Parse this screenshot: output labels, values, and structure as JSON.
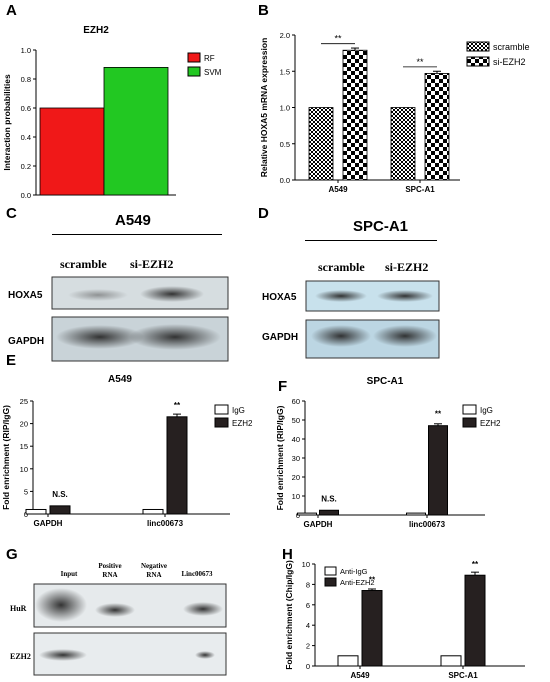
{
  "colors": {
    "rf": "#f01818",
    "svm": "#22c822",
    "dark_bar": "#262020",
    "membrane": "#d9e3e8"
  },
  "panel_letters": [
    "A",
    "B",
    "C",
    "D",
    "E",
    "F",
    "G",
    "H"
  ],
  "chart_data": [
    {
      "id": "A",
      "type": "bar",
      "title": "EZH2",
      "ylabel": "Interaction probabilities",
      "xlabel": "",
      "ylim": [
        0,
        1.0
      ],
      "yticks": [
        "0.0",
        "0.2",
        "0.4",
        "0.6",
        "0.8",
        "1.0"
      ],
      "legend": [
        "RF",
        "SVM"
      ],
      "legend_position": "right",
      "series": [
        {
          "name": "RF",
          "values": [
            0.6
          ]
        },
        {
          "name": "SVM",
          "values": [
            0.88
          ]
        }
      ]
    },
    {
      "id": "B",
      "type": "bar",
      "title": "",
      "ylabel": "Relative HOXA5 mRNA expression",
      "xlabel": "",
      "categories": [
        "A549",
        "SPC-A1"
      ],
      "ylim": [
        0,
        2.0
      ],
      "yticks": [
        "0.0",
        "0.5",
        "1.0",
        "1.5",
        "2.0"
      ],
      "legend": [
        "scramble",
        "si-EZH2"
      ],
      "legend_position": "right",
      "series": [
        {
          "name": "scramble",
          "values": [
            1.0,
            1.0
          ]
        },
        {
          "name": "si-EZH2",
          "values": [
            1.79,
            1.47
          ]
        }
      ],
      "annotations": [
        "**",
        "**"
      ]
    },
    {
      "id": "E",
      "type": "bar",
      "title": "A549",
      "ylabel": "Fold enrichment (RIP/IgG)",
      "xlabel": "",
      "categories": [
        "GAPDH",
        "linc00673"
      ],
      "ylim": [
        0,
        25
      ],
      "yticks": [
        "0",
        "5",
        "10",
        "15",
        "20",
        "25"
      ],
      "legend": [
        "IgG",
        "EZH2"
      ],
      "legend_position": "top-right",
      "series": [
        {
          "name": "IgG",
          "values": [
            1.0,
            1.0
          ]
        },
        {
          "name": "EZH2",
          "values": [
            1.8,
            21.5
          ]
        }
      ],
      "annotations": [
        "N.S.",
        "**"
      ]
    },
    {
      "id": "F",
      "type": "bar",
      "title": "SPC-A1",
      "ylabel": "Fold enrichment (RIP/IgG)",
      "xlabel": "",
      "categories": [
        "GAPDH",
        "linc00673"
      ],
      "ylim": [
        0,
        60
      ],
      "yticks": [
        "0",
        "10",
        "20",
        "30",
        "40",
        "50",
        "60"
      ],
      "legend": [
        "IgG",
        "EZH2"
      ],
      "legend_position": "top-right",
      "series": [
        {
          "name": "IgG",
          "values": [
            1.0,
            1.0
          ]
        },
        {
          "name": "EZH2",
          "values": [
            2.5,
            47
          ]
        }
      ],
      "annotations": [
        "N.S.",
        "**"
      ]
    },
    {
      "id": "H",
      "type": "bar",
      "title": "",
      "ylabel": "Fold enrichment (Chip/IgG)",
      "xlabel": "",
      "categories": [
        "A549",
        "SPC-A1"
      ],
      "ylim": [
        0,
        10
      ],
      "yticks": [
        "0",
        "2",
        "4",
        "6",
        "8",
        "10"
      ],
      "legend": [
        "Anti-IgG",
        "Anti-EZH2"
      ],
      "legend_position": "top-left",
      "series": [
        {
          "name": "Anti-IgG",
          "values": [
            1.0,
            1.0
          ]
        },
        {
          "name": "Anti-EZH2",
          "values": [
            7.4,
            8.9
          ]
        }
      ],
      "annotations": [
        "**",
        "**"
      ]
    }
  ],
  "blots": {
    "C": {
      "title": "A549",
      "columns": [
        "scramble",
        "si-EZH2"
      ],
      "rows": [
        "HOXA5",
        "GAPDH"
      ]
    },
    "D": {
      "title": "SPC-A1",
      "columns": [
        "scramble",
        "si-EZH2"
      ],
      "rows": [
        "HOXA5",
        "GAPDH"
      ]
    },
    "G": {
      "columns": [
        "Input",
        "Positive\nRNA",
        "Negative\nRNA",
        "Linc00673"
      ],
      "rows": [
        "HuR",
        "EZH2"
      ]
    }
  }
}
